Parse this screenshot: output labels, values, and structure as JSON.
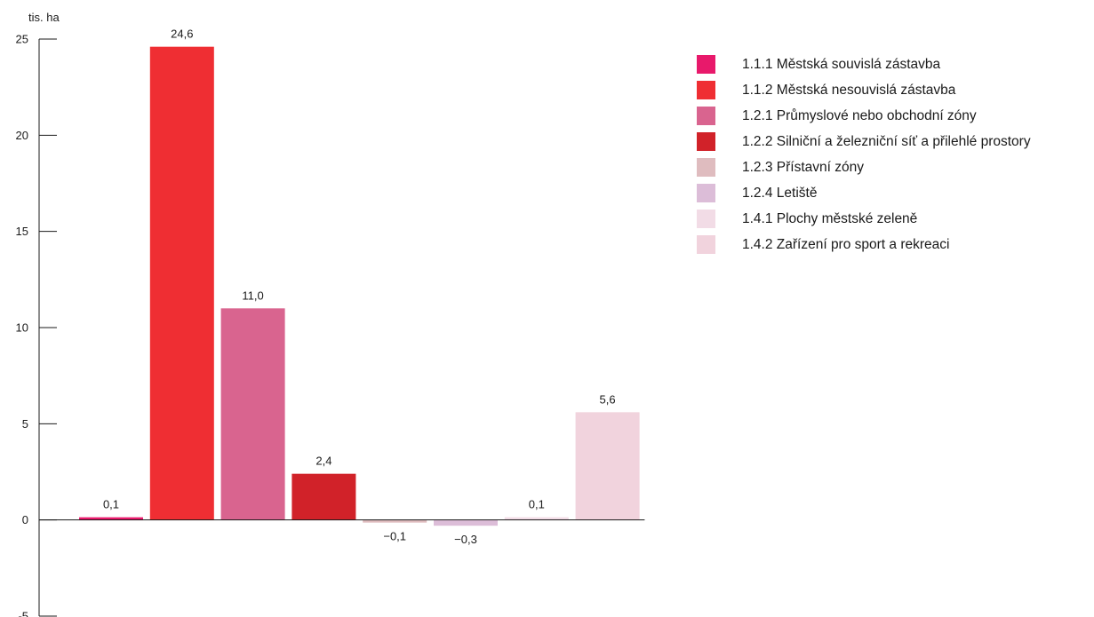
{
  "chart_data": {
    "type": "bar",
    "unit_label": "tis. ha",
    "categories": [
      "1.1.1 Městská souvislá zástavba",
      "1.1.2 Městská nesouvislá zástavba",
      "1.2.1 Průmyslové nebo obchodní zóny",
      "1.2.2 Silniční a železniční síť a přilehlé prostory",
      "1.2.3 Přístavní zóny",
      "1.2.4 Letiště",
      "1.4.1 Plochy městské zeleně",
      "1.4.2 Zařízení pro sport a rekreaci"
    ],
    "values": [
      0.1,
      24.6,
      11.0,
      2.4,
      -0.1,
      -0.3,
      0.1,
      5.6
    ],
    "value_labels": [
      "0,1",
      "24,6",
      "11,0",
      "2,4",
      "−0,1",
      "−0,3",
      "0,1",
      "5,6"
    ],
    "colors": [
      "#e8196b",
      "#ef2e33",
      "#d9648f",
      "#d12229",
      "#dfbcbf",
      "#dcbdd8",
      "#f2dce6",
      "#f1d3dd"
    ],
    "ylim": [
      -5,
      25
    ],
    "yticks": [
      25,
      20,
      15,
      10,
      5,
      0,
      -5
    ],
    "ytick_labels": [
      "25",
      "20",
      "15",
      "10",
      "5",
      "0",
      "-5"
    ],
    "legend_position": "right",
    "grid": false
  }
}
